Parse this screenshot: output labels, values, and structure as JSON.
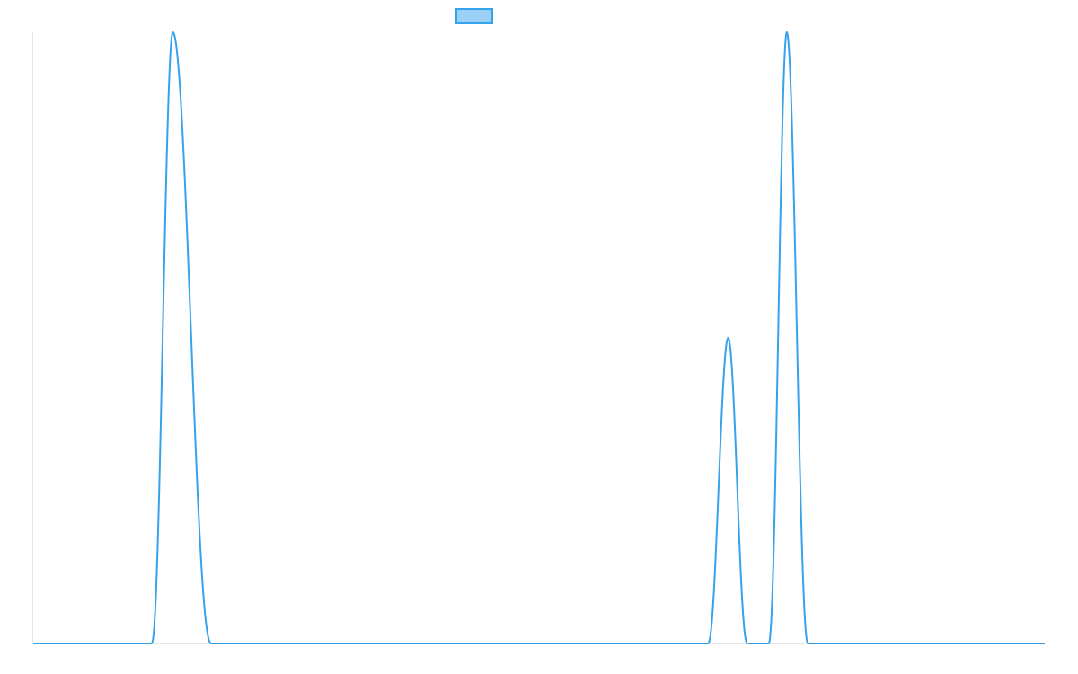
{
  "chart_data": {
    "type": "line",
    "title": "",
    "xlabel": "",
    "ylabel": "",
    "grid": false,
    "legend": "top-center",
    "ylim": [
      0,
      1
    ],
    "x": [
      0,
      110,
      117,
      119,
      121,
      123,
      125,
      127,
      129,
      131,
      133,
      135,
      137,
      139,
      141,
      143,
      145,
      147,
      149,
      151,
      153,
      155,
      157,
      159,
      161,
      163,
      165,
      167,
      169,
      171,
      173,
      175,
      177,
      179,
      181,
      183,
      185,
      187,
      189,
      191,
      193,
      195,
      197,
      199,
      201,
      203,
      205,
      207,
      209,
      211,
      213,
      215,
      217,
      219,
      221,
      223,
      225,
      227,
      229,
      231,
      233,
      235,
      237,
      239,
      241,
      243,
      245,
      247,
      249,
      251,
      253,
      255,
      257,
      259,
      261,
      263,
      265,
      267,
      269,
      271,
      273,
      275,
      277,
      279,
      281,
      283,
      285,
      287,
      289,
      291,
      293,
      295,
      297,
      299,
      301,
      303,
      305,
      307,
      309,
      311,
      313,
      315,
      317,
      319,
      321,
      323,
      325,
      327,
      329,
      331,
      333,
      335,
      337,
      339,
      341,
      343,
      345,
      347,
      349,
      351,
      353,
      355,
      357,
      359,
      361,
      363,
      365,
      367,
      369,
      371,
      373,
      375,
      377,
      379,
      381,
      383,
      385,
      387,
      389,
      391,
      393,
      395,
      397,
      399,
      401,
      403,
      405,
      407,
      409,
      411,
      413,
      415,
      417,
      419,
      421,
      423,
      425,
      427,
      429,
      431,
      433,
      435,
      437,
      439,
      441,
      443,
      445,
      447,
      449,
      451,
      453,
      455,
      457,
      459,
      461,
      463,
      465,
      467,
      469,
      471,
      473,
      475,
      477,
      479,
      481,
      483,
      485,
      487,
      489,
      491,
      493,
      495,
      497,
      499,
      501,
      503,
      505,
      507,
      509,
      511,
      513,
      515,
      517,
      519,
      521,
      523,
      525,
      527,
      529,
      531,
      533,
      535,
      537,
      539,
      541,
      543,
      545,
      547,
      549,
      551,
      553,
      555,
      557,
      559,
      561,
      563,
      565,
      567,
      569,
      571,
      573,
      575,
      577,
      579,
      581,
      583,
      585,
      587,
      589,
      591,
      593,
      595,
      597,
      599,
      601,
      603,
      605,
      607,
      609,
      611,
      613,
      615,
      617,
      619,
      621,
      623,
      625,
      627,
      629,
      631,
      633,
      635,
      637,
      639,
      641,
      643,
      645,
      647,
      649,
      651,
      653,
      655,
      657,
      659,
      661,
      663,
      665,
      667,
      669,
      671,
      673,
      675,
      677,
      679,
      681,
      683,
      685,
      687,
      689,
      691,
      693,
      695,
      697,
      699,
      701,
      703,
      705,
      707,
      709,
      711,
      713,
      715,
      717,
      719,
      721,
      723,
      725,
      727,
      729,
      731,
      733,
      735,
      737,
      739,
      741,
      743,
      745,
      747,
      749,
      751,
      753,
      755,
      757,
      759,
      761,
      763,
      765,
      767,
      769,
      771,
      773,
      775,
      777,
      779,
      781,
      783,
      785,
      787,
      789,
      791,
      793,
      795,
      797,
      799,
      801,
      803,
      805,
      807,
      809,
      811,
      813,
      815,
      817,
      819,
      821,
      823,
      825,
      827,
      829,
      831,
      833,
      835,
      837,
      839,
      841,
      843,
      845,
      847,
      849,
      851,
      853,
      855,
      857,
      859,
      861,
      863,
      865,
      867,
      869,
      871,
      873,
      875,
      877,
      879,
      881,
      883,
      885,
      887,
      889,
      891,
      893,
      895,
      897,
      899,
      901,
      903,
      905,
      907,
      909,
      911,
      913,
      915,
      917,
      919,
      921,
      923,
      925,
      927,
      929,
      931,
      933,
      935,
      937,
      939,
      941,
      943,
      945,
      947,
      949,
      951,
      953,
      955,
      957,
      959,
      961,
      963,
      965,
      967,
      969,
      971,
      973,
      975,
      977,
      979,
      981,
      983,
      985,
      987,
      989,
      991,
      993,
      995,
      997,
      999,
      1000
    ],
    "series": [
      {
        "name": "",
        "color": "#36a2eb",
        "fill": "#9ad0f5",
        "peaks": [
          {
            "start": 117,
            "center": 138,
            "end": 176,
            "height": 1.0
          },
          {
            "start": 667,
            "center": 687,
            "end": 706,
            "height": 0.5
          },
          {
            "start": 727,
            "center": 745,
            "end": 766,
            "height": 1.0
          }
        ]
      }
    ],
    "xrange": [
      0,
      1000
    ]
  }
}
